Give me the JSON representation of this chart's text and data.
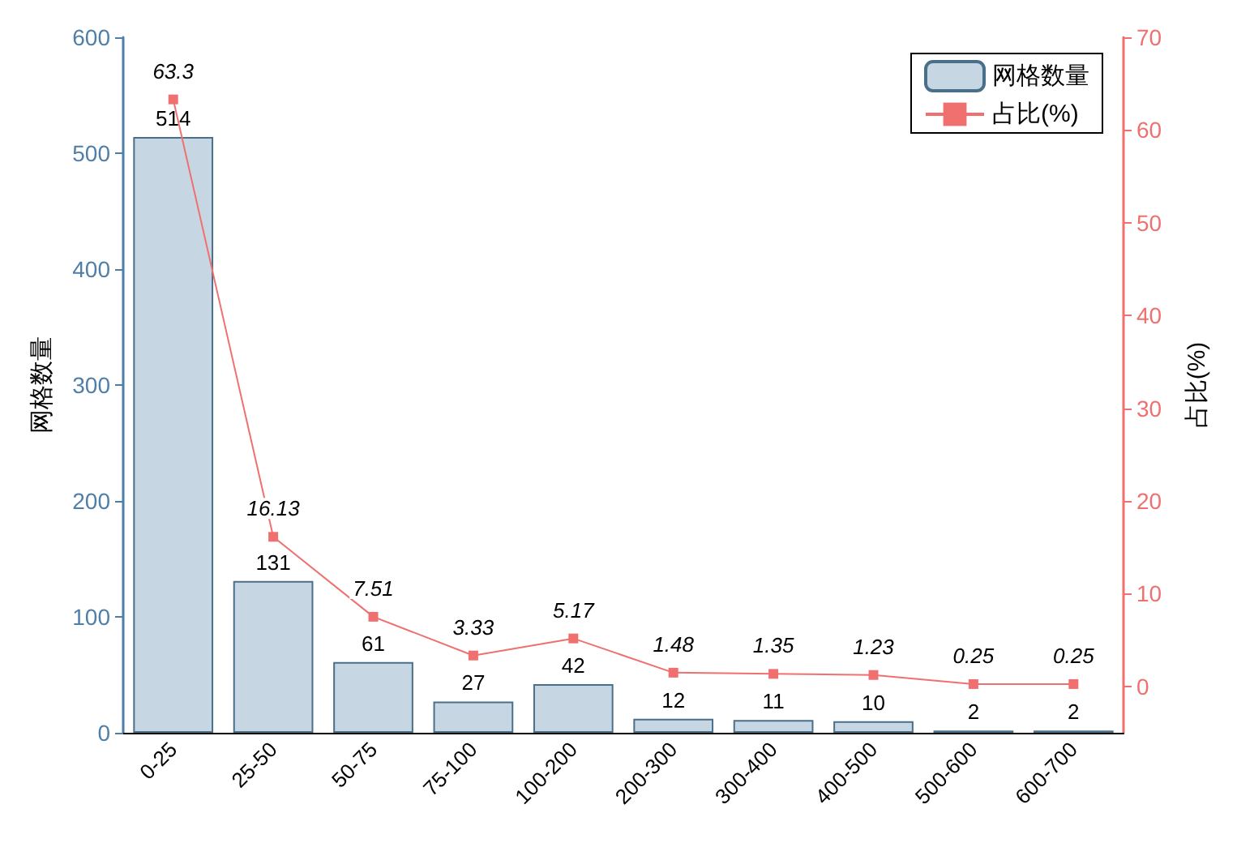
{
  "chart_data": {
    "type": "bar",
    "categories": [
      "0-25",
      "25-50",
      "50-75",
      "75-100",
      "100-200",
      "200-300",
      "300-400",
      "400-500",
      "500-600",
      "600-700"
    ],
    "ylabel": "网格数量",
    "y2label": "占比(%)",
    "series": [
      {
        "name": "网格数量",
        "color": "#c6d6e3",
        "values": [
          514,
          131,
          61,
          27,
          42,
          12,
          11,
          10,
          2,
          2
        ]
      },
      {
        "name": "占比(%)",
        "type": "line",
        "axis": "y2",
        "color": "#f07070",
        "values": [
          63.3,
          16.13,
          7.51,
          3.33,
          5.17,
          1.48,
          1.35,
          1.23,
          0.25,
          0.25
        ]
      }
    ],
    "ylim": [
      0,
      600
    ],
    "yticks": [
      0,
      100,
      200,
      300,
      400,
      500,
      600
    ],
    "y2lim": [
      -5,
      70
    ],
    "y2ticks": [
      0,
      10,
      20,
      30,
      40,
      50,
      60,
      70
    ],
    "data_labels": true,
    "legend": "top right",
    "grid": false,
    "marker": "square",
    "line_style": "solid"
  }
}
